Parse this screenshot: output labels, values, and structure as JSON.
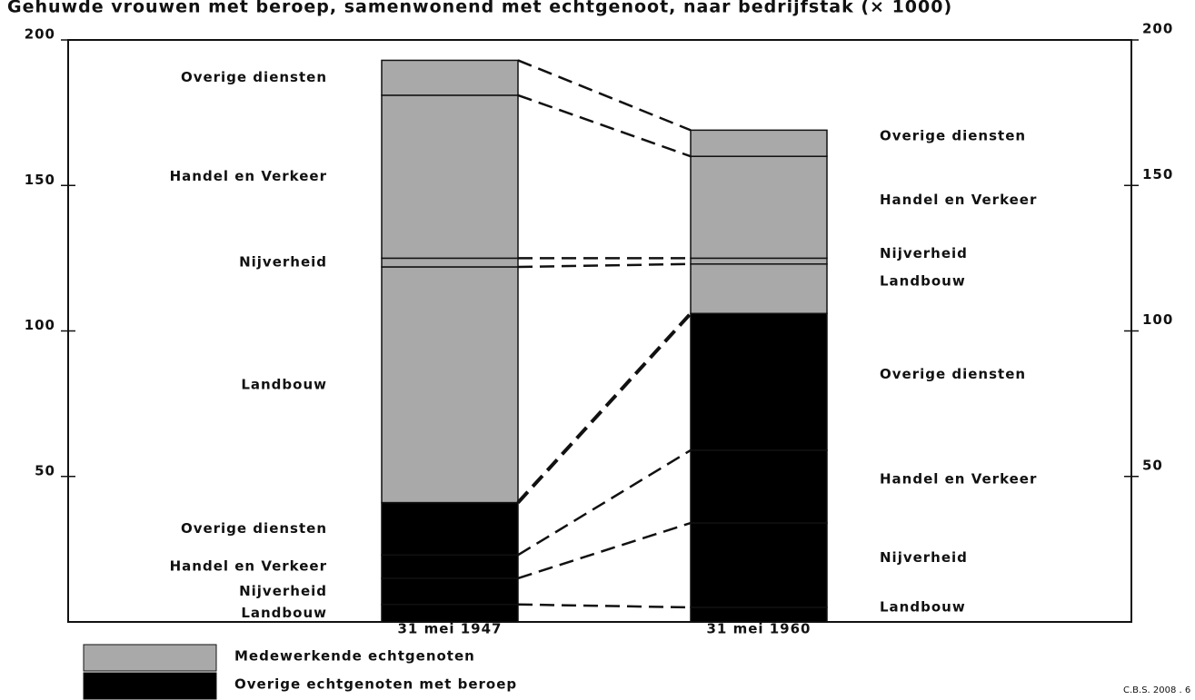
{
  "chart_data": {
    "type": "stacked_bar",
    "title": "Gehuwde vrouwen met beroep, samenwonend met echtgenoot, naar bedrijfstak (× 1000)",
    "categories": [
      "31 mei 1947",
      "31 mei 1960"
    ],
    "groups": [
      {
        "name": "Overige echtgenoten met beroep",
        "color": "#000000",
        "segments": [
          {
            "name": "Landbouw",
            "values": [
              6,
              5
            ]
          },
          {
            "name": "Nijverheid",
            "values": [
              9,
              29
            ]
          },
          {
            "name": "Handel en Verkeer",
            "values": [
              8,
              25
            ]
          },
          {
            "name": "Overige diensten",
            "values": [
              18,
              47
            ]
          }
        ]
      },
      {
        "name": "Medewerkende echtgenoten",
        "color": "#a9a9a9",
        "segments": [
          {
            "name": "Landbouw",
            "values": [
              81,
              17
            ]
          },
          {
            "name": "Nijverheid",
            "values": [
              3,
              2
            ]
          },
          {
            "name": "Handel en Verkeer",
            "values": [
              56,
              35
            ]
          },
          {
            "name": "Overige diensten",
            "values": [
              12,
              9
            ]
          }
        ]
      }
    ],
    "ylim": [
      0,
      200
    ],
    "yticks": [
      50,
      100,
      150,
      200
    ],
    "source": "C.B.S. 2008 . 6"
  }
}
